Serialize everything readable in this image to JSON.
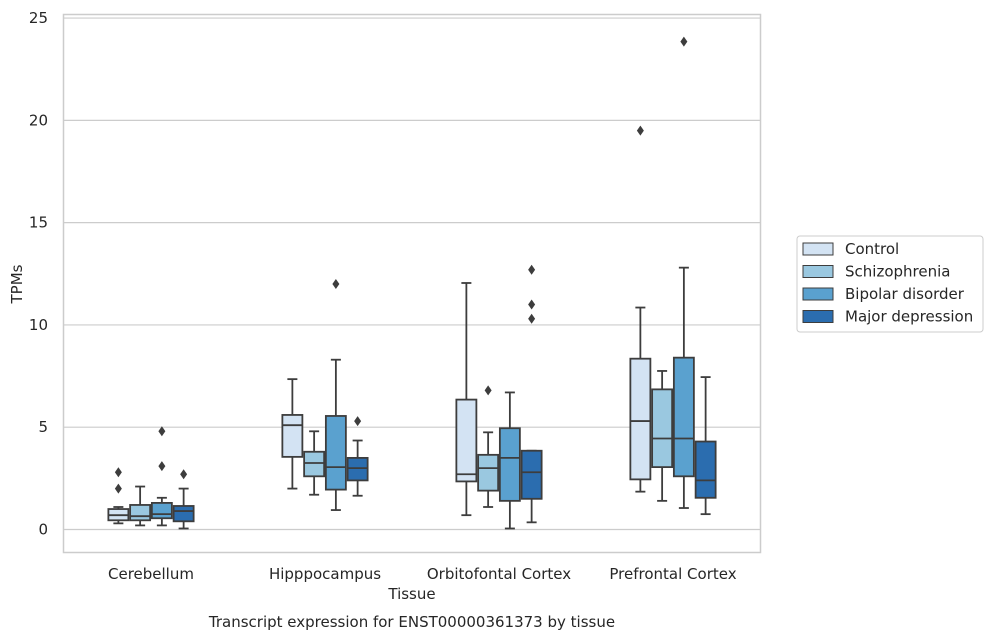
{
  "chart_data": {
    "type": "box",
    "xlabel": "Tissue",
    "ylabel": "TPMs",
    "caption": "Transcript expression for ENST00000361373 by tissue",
    "ylim": [
      -1.1,
      25.15
    ],
    "yticks": [
      0,
      5,
      10,
      15,
      20,
      25
    ],
    "grid": true,
    "legend_placement": "right",
    "categories": [
      "Cerebellum",
      "Hipppocampus",
      "Orbitofontal Cortex",
      "Prefrontal Cortex"
    ],
    "series": [
      {
        "name": "Control",
        "color": "#d3e3f3",
        "boxes": [
          {
            "whisker_low": 0.3,
            "q1": 0.45,
            "median": 0.7,
            "q3": 1.0,
            "whisker_high": 1.1,
            "outliers": [
              2.0,
              2.8
            ]
          },
          {
            "whisker_low": 2.0,
            "q1": 3.55,
            "median": 5.1,
            "q3": 5.6,
            "whisker_high": 7.35,
            "outliers": []
          },
          {
            "whisker_low": 0.7,
            "q1": 2.35,
            "median": 2.7,
            "q3": 6.35,
            "whisker_high": 12.05,
            "outliers": []
          },
          {
            "whisker_low": 1.85,
            "q1": 2.45,
            "median": 5.3,
            "q3": 8.35,
            "whisker_high": 10.85,
            "outliers": [
              19.5
            ]
          }
        ]
      },
      {
        "name": "Schizophrenia",
        "color": "#9ac8e0",
        "boxes": [
          {
            "whisker_low": 0.2,
            "q1": 0.45,
            "median": 0.65,
            "q3": 1.2,
            "whisker_high": 2.1,
            "outliers": []
          },
          {
            "whisker_low": 1.7,
            "q1": 2.6,
            "median": 3.25,
            "q3": 3.8,
            "whisker_high": 4.8,
            "outliers": []
          },
          {
            "whisker_low": 1.1,
            "q1": 1.9,
            "median": 3.0,
            "q3": 3.65,
            "whisker_high": 4.75,
            "outliers": [
              6.8
            ]
          },
          {
            "whisker_low": 1.4,
            "q1": 3.05,
            "median": 4.45,
            "q3": 6.85,
            "whisker_high": 7.75,
            "outliers": []
          }
        ]
      },
      {
        "name": "Bipolar disorder",
        "color": "#5aa1cf",
        "boxes": [
          {
            "whisker_low": 0.2,
            "q1": 0.55,
            "median": 0.75,
            "q3": 1.3,
            "whisker_high": 1.55,
            "outliers": [
              3.1,
              4.8
            ]
          },
          {
            "whisker_low": 0.95,
            "q1": 1.95,
            "median": 3.05,
            "q3": 5.55,
            "whisker_high": 8.3,
            "outliers": [
              12.0
            ]
          },
          {
            "whisker_low": 0.05,
            "q1": 1.4,
            "median": 3.5,
            "q3": 4.95,
            "whisker_high": 6.7,
            "outliers": []
          },
          {
            "whisker_low": 1.05,
            "q1": 2.6,
            "median": 4.45,
            "q3": 8.4,
            "whisker_high": 12.8,
            "outliers": [
              23.85
            ]
          }
        ]
      },
      {
        "name": "Major depression",
        "color": "#2b6daf",
        "boxes": [
          {
            "whisker_low": 0.05,
            "q1": 0.4,
            "median": 0.9,
            "q3": 1.15,
            "whisker_high": 2.0,
            "outliers": [
              2.7
            ]
          },
          {
            "whisker_low": 1.65,
            "q1": 2.4,
            "median": 3.0,
            "q3": 3.5,
            "whisker_high": 4.35,
            "outliers": [
              5.3
            ]
          },
          {
            "whisker_low": 0.35,
            "q1": 1.5,
            "median": 2.8,
            "q3": 3.85,
            "whisker_high": 3.85,
            "outliers": [
              10.3,
              11.0,
              12.7
            ]
          },
          {
            "whisker_low": 0.75,
            "q1": 1.55,
            "median": 2.4,
            "q3": 4.3,
            "whisker_high": 7.45,
            "outliers": []
          }
        ]
      }
    ]
  }
}
